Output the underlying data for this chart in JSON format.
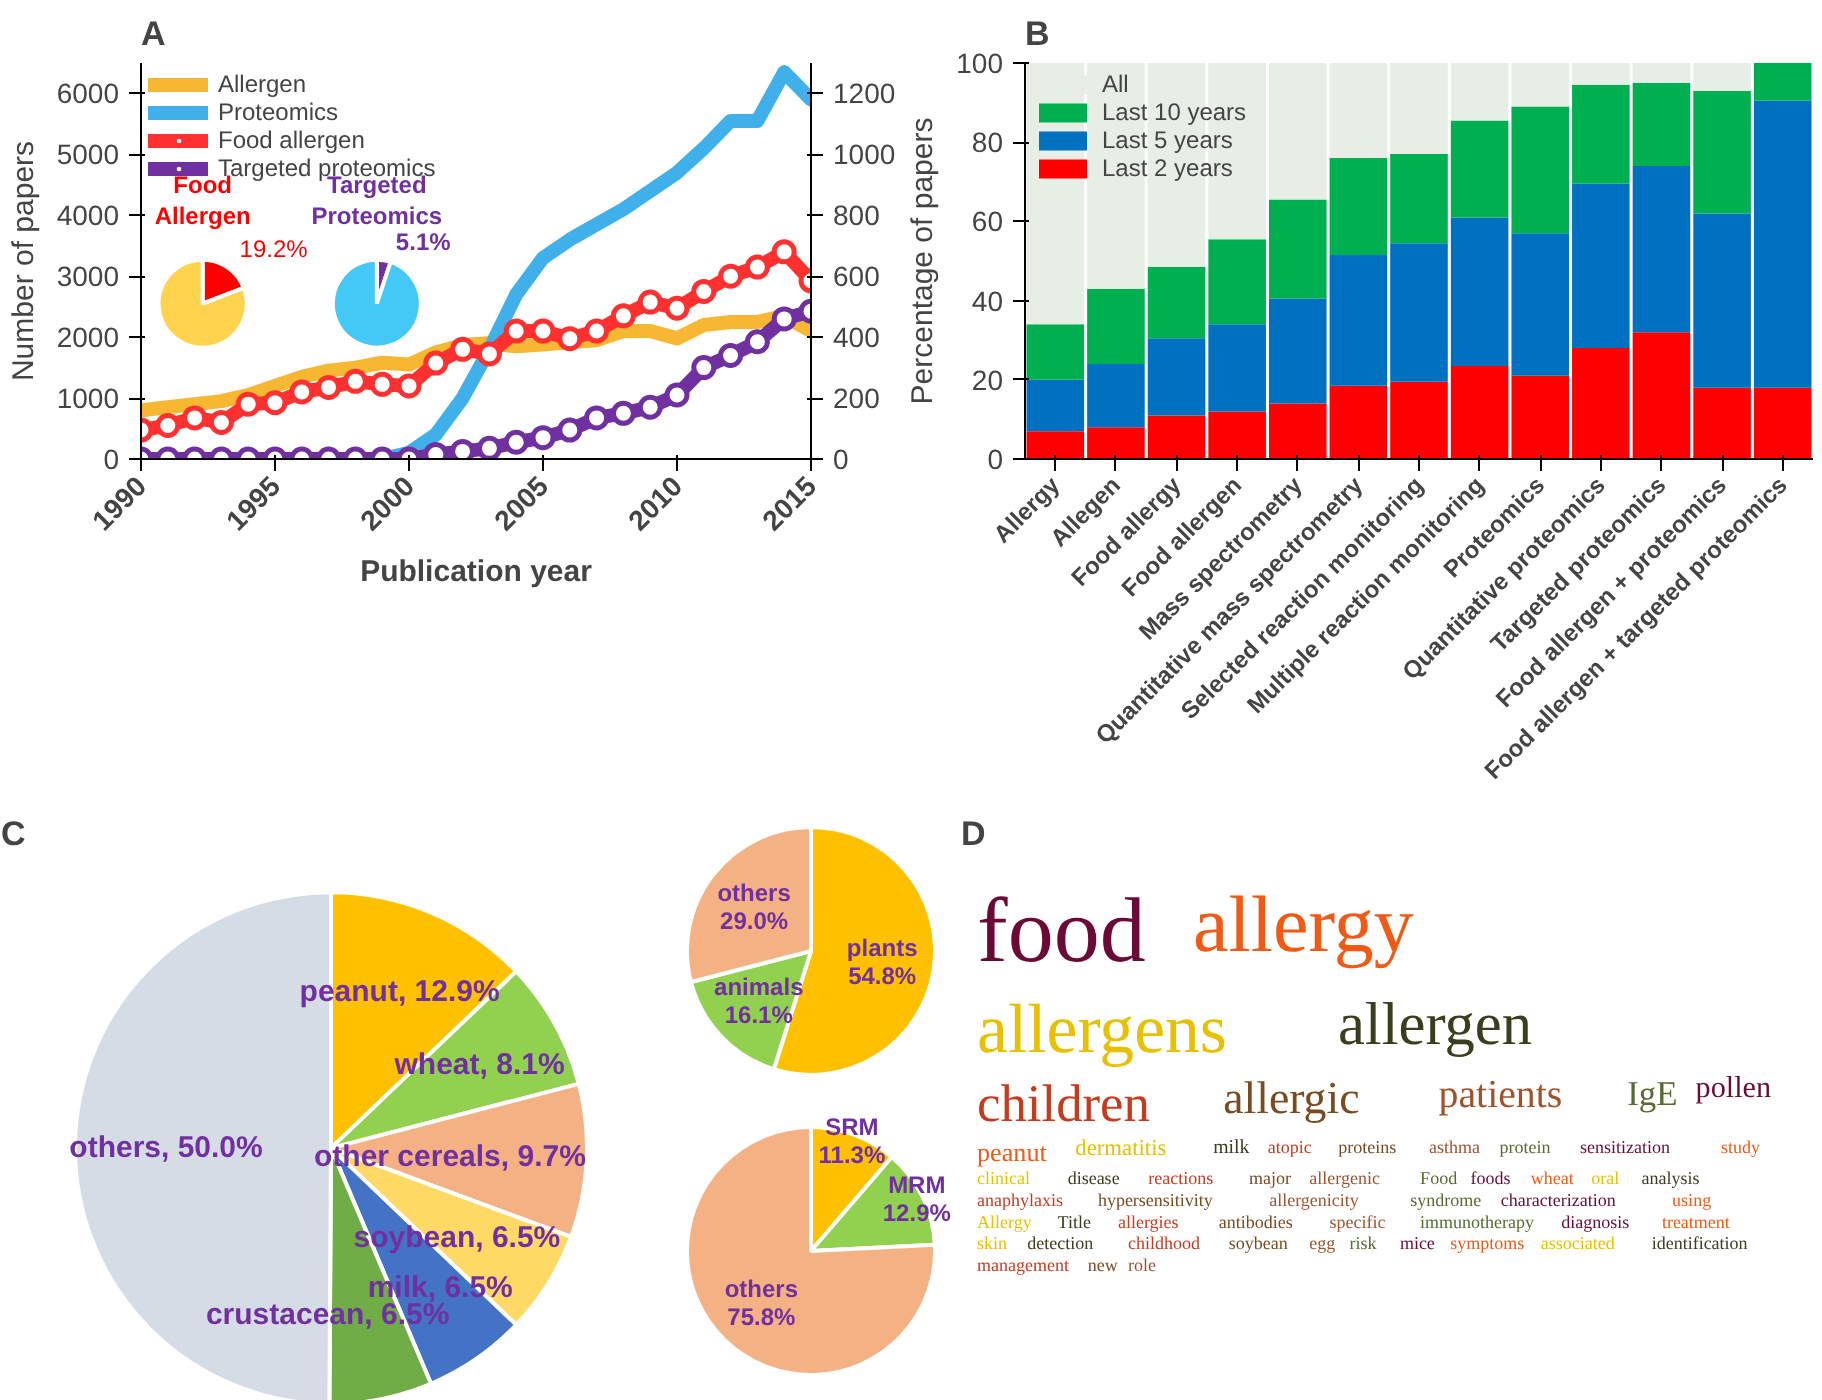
{
  "chart_data": [
    {
      "type": "line",
      "title": "A",
      "xlabel": "Publication year",
      "ylabel": "Number of papers",
      "x": [
        1990,
        1991,
        1992,
        1993,
        1994,
        1995,
        1996,
        1997,
        1998,
        1999,
        2000,
        2001,
        2002,
        2003,
        2004,
        2005,
        2006,
        2007,
        2008,
        2009,
        2010,
        2011,
        2012,
        2013,
        2014,
        2015
      ],
      "xlim": [
        1990,
        2015
      ],
      "xticks": [
        1990,
        1995,
        2000,
        2005,
        2010,
        2015
      ],
      "ylim": [
        0,
        6500
      ],
      "yticks": [
        0,
        1000,
        2000,
        3000,
        4000,
        5000,
        6000
      ],
      "y2lim": [
        0,
        1300
      ],
      "y2ticks": [
        0,
        200,
        400,
        600,
        800,
        1000,
        1200
      ],
      "legend": "top left",
      "series": [
        {
          "name": "Allergen",
          "color": "#f7b733",
          "marker": "none",
          "values": [
            800,
            850,
            900,
            950,
            1050,
            1200,
            1350,
            1450,
            1500,
            1580,
            1550,
            1750,
            1870,
            1900,
            1850,
            1880,
            1920,
            1950,
            2100,
            2100,
            1980,
            2200,
            2250,
            2250,
            2350,
            2100
          ]
        },
        {
          "name": "Proteomics",
          "color": "#3fb0ea",
          "marker": "none",
          "values": [
            null,
            null,
            null,
            null,
            null,
            null,
            null,
            null,
            0,
            0,
            100,
            400,
            1000,
            1800,
            2700,
            3300,
            3600,
            3850,
            4100,
            4400,
            4700,
            5100,
            5550,
            5550,
            6350,
            5900
          ]
        },
        {
          "name": "Food allergen",
          "color": "#ff3030",
          "marker": "circle",
          "axis": "y2",
          "values": [
            95,
            110,
            135,
            120,
            180,
            185,
            220,
            235,
            255,
            245,
            240,
            315,
            360,
            345,
            420,
            420,
            395,
            420,
            470,
            515,
            495,
            550,
            600,
            630,
            680,
            585
          ]
        },
        {
          "name": "Targeted proteomics",
          "color": "#7030a0",
          "marker": "circle",
          "axis": "y2",
          "values": [
            0,
            0,
            0,
            0,
            0,
            0,
            0,
            0,
            0,
            0,
            0,
            15,
            25,
            35,
            55,
            70,
            95,
            135,
            150,
            170,
            210,
            300,
            340,
            385,
            460,
            485
          ]
        }
      ]
    },
    {
      "type": "pie",
      "title": "Food Allergen",
      "categories": [
        null,
        null
      ],
      "values": [
        19.2,
        80.8
      ],
      "colors": [
        "#ff0000",
        "#ffd34d"
      ],
      "value_labels": [
        "19.2%",
        null
      ]
    },
    {
      "type": "pie",
      "title": "Targeted Proteomics",
      "categories": [
        null,
        null
      ],
      "values": [
        5.1,
        94.9
      ],
      "colors": [
        "#7030a0",
        "#44c8f5"
      ],
      "value_labels": [
        "5.1%",
        null
      ]
    },
    {
      "type": "bar",
      "title": "B",
      "ylabel": "Percentage of papers",
      "stacked": true,
      "ylim": [
        0,
        100
      ],
      "yticks": [
        0,
        20,
        40,
        60,
        80,
        100
      ],
      "legend": "top left",
      "categories": [
        "Allergy",
        "Allegen",
        "Food allergy",
        "Food allergen",
        "Mass spectrometry",
        "Quantitative mass spectrometry",
        "Selected reaction monitoring",
        "Multiple reaction monitoring",
        "Proteomics",
        "Quantitative proteomics",
        "Targeted proteomics",
        "Food allergen + proteomics",
        "Food allergen + targeted proteomics"
      ],
      "series": [
        {
          "name": "Last 2 years",
          "color": "#ff0000",
          "values": [
            7,
            8,
            11,
            12,
            14,
            18.5,
            19.5,
            23.5,
            21,
            28,
            32,
            18,
            18
          ]
        },
        {
          "name": "Last 5 years",
          "color": "#0070c0",
          "values": [
            13,
            16,
            19.5,
            22,
            26.5,
            33,
            35,
            37.5,
            36,
            41.5,
            42,
            44,
            72.5
          ]
        },
        {
          "name": "Last 10 years",
          "color": "#00b050",
          "values": [
            14,
            19,
            18,
            21.5,
            25,
            24.5,
            22.5,
            24.5,
            32,
            25,
            21,
            31,
            9.5
          ]
        },
        {
          "name": "All",
          "color": "#e6eee6",
          "values": [
            66,
            57,
            51.5,
            44.5,
            34.5,
            24,
            23,
            14.5,
            11,
            5.5,
            5,
            7,
            0
          ]
        }
      ]
    },
    {
      "type": "pie",
      "title": "C",
      "categories": [
        "peanut",
        "wheat",
        "other cereals",
        "soybean",
        "milk",
        "crustacean",
        "others"
      ],
      "values": [
        12.9,
        8.1,
        9.7,
        6.5,
        6.5,
        6.5,
        50.0
      ],
      "colors": [
        "#ffc000",
        "#92d050",
        "#f4b183",
        "#ffd966",
        "#4472c4",
        "#70ad47",
        "#d6dce5"
      ],
      "value_labels": [
        ", 12.9%",
        ", 8.1%",
        ", 9.7%",
        ", 6.5%",
        ", 6.5%",
        ", 6.5%",
        ", 50.0%"
      ]
    },
    {
      "type": "pie",
      "categories": [
        "plants",
        "animals",
        "others"
      ],
      "values": [
        54.8,
        16.1,
        29.0
      ],
      "colors": [
        "#ffc000",
        "#92d050",
        "#f4b183"
      ],
      "value_labels": [
        "54.8%",
        "16.1%",
        "29.0%"
      ]
    },
    {
      "type": "pie",
      "categories": [
        "SRM",
        "MRM",
        "others"
      ],
      "values": [
        11.3,
        12.9,
        75.8
      ],
      "colors": [
        "#ffc000",
        "#92d050",
        "#f4b183"
      ],
      "value_labels": [
        "11.3%",
        "12.9%",
        "75.8%"
      ]
    },
    {
      "type": "other",
      "title": "D",
      "annotations": [
        "food",
        "allergy",
        "allergens",
        "allergen",
        "children",
        "allergic",
        "patients",
        "IgE",
        "pollen",
        "peanut",
        "dermatitis",
        "milk",
        "atopic",
        "proteins",
        "asthma",
        "protein",
        "sensitization",
        "study",
        "clinical",
        "disease",
        "reactions",
        "major",
        "allergenic",
        "Food",
        "foods",
        "wheat",
        "oral",
        "analysis",
        "anaphylaxis",
        "hypersensitivity",
        "allergenicity",
        "syndrome",
        "characterization",
        "using",
        "Allergy",
        "Title",
        "allergies",
        "antibodies",
        "specific",
        "immunotherapy",
        "diagnosis",
        "treatment",
        "skin",
        "detection",
        "childhood",
        "soybean",
        "egg",
        "risk",
        "mice",
        "symptoms",
        "associated",
        "identification",
        "management",
        "new",
        "role"
      ]
    }
  ]
}
